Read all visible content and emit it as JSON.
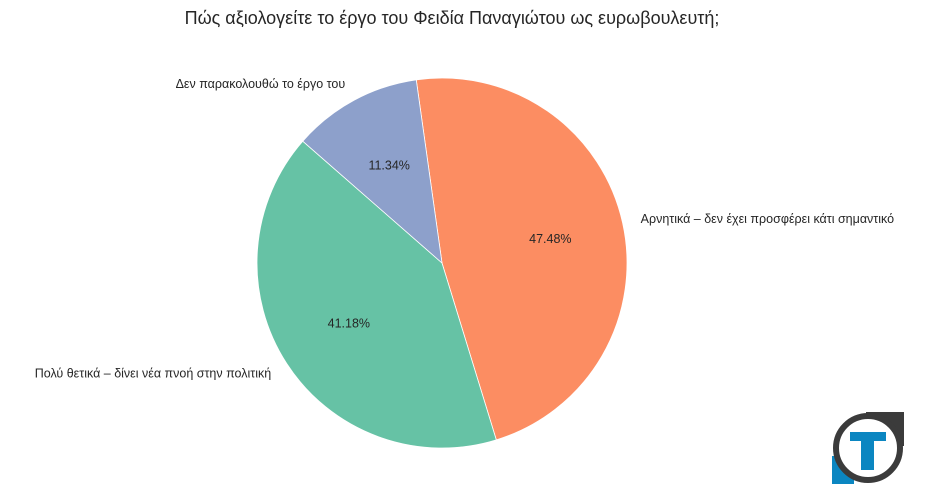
{
  "chart_data": {
    "type": "pie",
    "title": "Πώς αξιολογείτε το έργο του Φειδία Παναγιώτου ως ευρωβουλευτή;",
    "slices": [
      {
        "label": "Αρνητικά – δεν έχει προσφέρει κάτι σημαντικό",
        "value": 47.48,
        "pct_label": "47.48%",
        "color": "#fc8d62"
      },
      {
        "label": "Πολύ θετικά – δίνει νέα πνοή στην πολιτική",
        "value": 41.18,
        "pct_label": "41.18%",
        "color": "#66c2a5"
      },
      {
        "label": "Δεν παρακολουθώ το έργο του",
        "value": 11.34,
        "pct_label": "11.34%",
        "color": "#8da0cb"
      }
    ],
    "start_angle_deg": 98,
    "direction": "clockwise"
  },
  "logo": {
    "name": "T-logo",
    "colors": {
      "blue": "#0b86c1",
      "dark": "#3b3b3b"
    }
  }
}
